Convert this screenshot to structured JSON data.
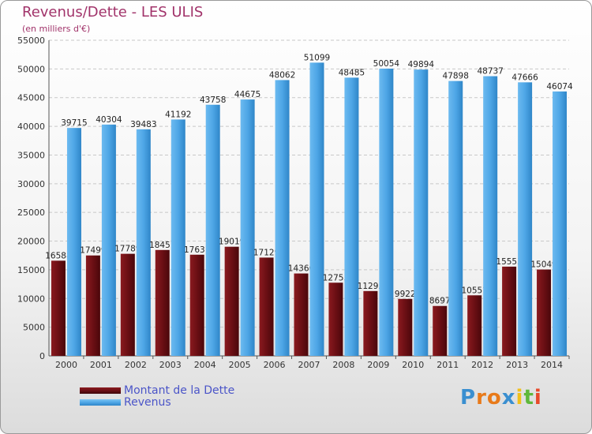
{
  "chart_data": {
    "type": "bar",
    "title": "Revenus/Dette - LES ULIS",
    "subtitle": "(en milliers d'€)",
    "categories": [
      "2000",
      "2001",
      "2002",
      "2003",
      "2004",
      "2005",
      "2006",
      "2007",
      "2008",
      "2009",
      "2010",
      "2011",
      "2012",
      "2013",
      "2014"
    ],
    "series": [
      {
        "name": "Montant de la Dette",
        "color": "#6b0f14",
        "values": [
          16588,
          17499,
          17789,
          18451,
          17631,
          19019,
          17129,
          14360,
          12753,
          11295,
          9922,
          8697,
          10551,
          15553,
          15049
        ],
        "labels": [
          "16588",
          "17499",
          "17789",
          "18451",
          "17631",
          "19019",
          "17129",
          "14360",
          "12753",
          "11295",
          "9922",
          "8697",
          "10551",
          "15553",
          "15049"
        ]
      },
      {
        "name": "Revenus",
        "color": "#4ea6e6",
        "values": [
          39715,
          40304,
          39483,
          41192,
          43758,
          44675,
          48062,
          51099,
          48485,
          50054,
          49894,
          47898,
          48737,
          47666,
          46074
        ],
        "labels": [
          "39715",
          "40304",
          "39483",
          "41192",
          "43758",
          "44675",
          "48062",
          "51099",
          "48485",
          "50054",
          "49894",
          "47898",
          "48737",
          "47666",
          "46074"
        ]
      }
    ],
    "ylim": [
      0,
      55000
    ],
    "yticks": [
      0,
      5000,
      10000,
      15000,
      20000,
      25000,
      30000,
      35000,
      40000,
      45000,
      50000,
      55000
    ],
    "grid": true,
    "legend_position": "bottom-left"
  },
  "logo": {
    "text": "Proxiti",
    "letters": [
      "P",
      "r",
      "o",
      "x",
      "i",
      "t",
      "i"
    ],
    "colors": [
      "#3a8fd0",
      "#e87a1a",
      "#e87a1a",
      "#3a8fd0",
      "#f2c01a",
      "#5fb83b",
      "#e84a2a"
    ]
  }
}
